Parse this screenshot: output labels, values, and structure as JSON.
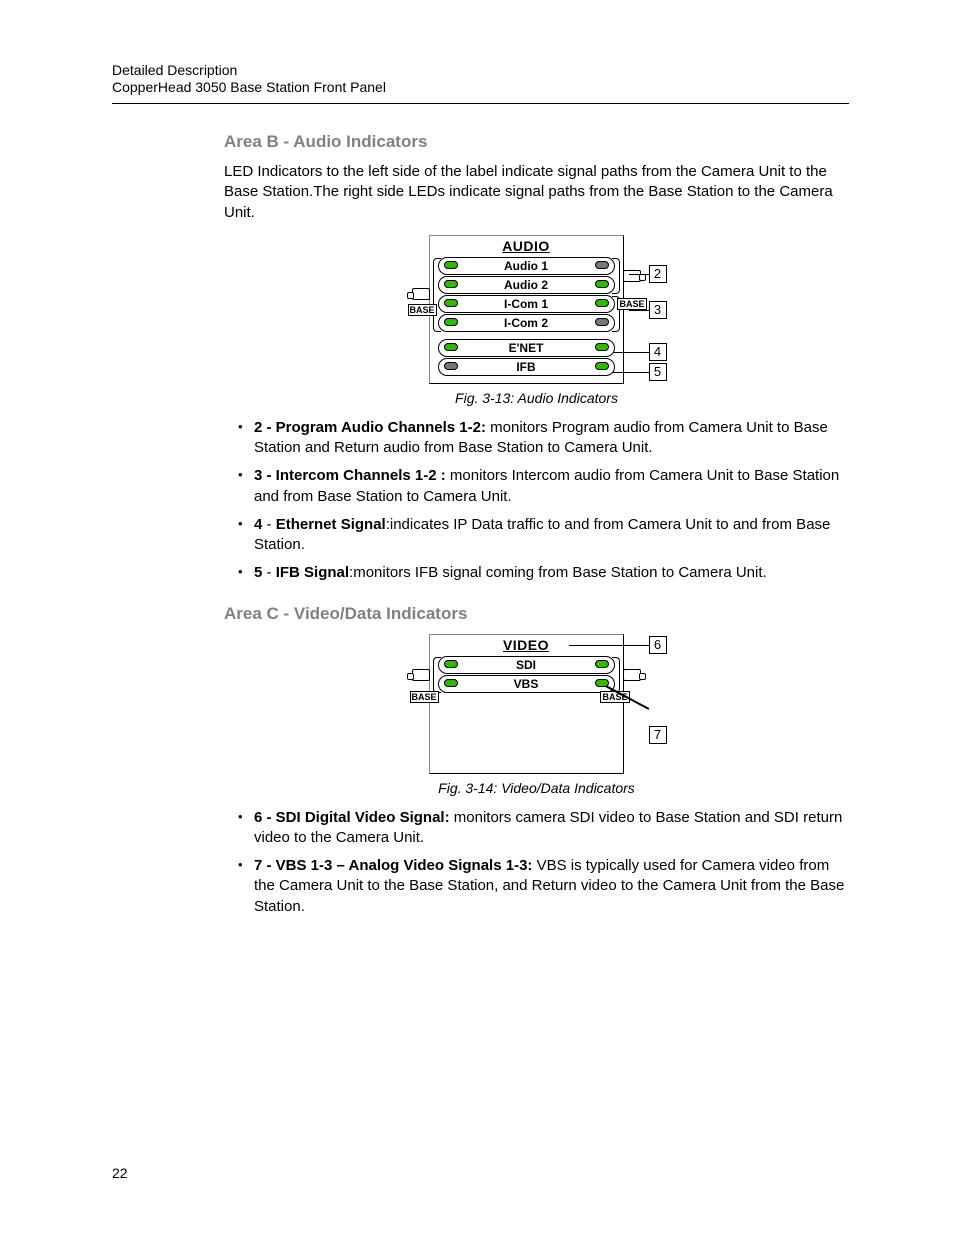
{
  "header": {
    "line1": "Detailed Description",
    "line2": "CopperHead 3050 Base Station Front Panel"
  },
  "page_number": "22",
  "colors": {
    "heading_gray": "#808080",
    "led_on": "#2dbb00",
    "led_off": "#777777",
    "text": "#000000",
    "background": "#ffffff"
  },
  "sectionB": {
    "heading": "Area B - Audio Indicators",
    "para": "LED Indicators to the left side of the label indicate signal paths from the Camera Unit to the Base Station.The  right side LEDs indicate signal paths from the Base Station to the Camera Unit.",
    "figure": {
      "title": "AUDIO",
      "rows": [
        {
          "label": "Audio 1",
          "left_on": true,
          "right_on": false
        },
        {
          "label": "Audio 2",
          "left_on": true,
          "right_on": true
        },
        {
          "label": "I-Com 1",
          "left_on": true,
          "right_on": true
        },
        {
          "label": "I-Com 2",
          "left_on": true,
          "right_on": false
        },
        {
          "label": "E'NET",
          "left_on": true,
          "right_on": true
        },
        {
          "label": "IFB",
          "left_on": false,
          "right_on": true
        }
      ],
      "left_base": "BASE",
      "right_base": "BASE",
      "callouts": [
        "2",
        "3",
        "4",
        "5"
      ],
      "caption": "Fig. 3-13: Audio Indicators"
    },
    "bullets": [
      {
        "lead": "2 - Program Audio Channels 1-2: ",
        "rest": "monitors Program audio from Camera Unit to Base Station and Return audio from Base Station to Camera Unit."
      },
      {
        "lead": "3 - Intercom Channels  1-2 : ",
        "rest": "monitors Intercom audio from Camera Unit to Base Station and from Base Station to Camera Unit."
      },
      {
        "lead_a": "4",
        "lead_b": " - ",
        "lead_c": "Ethernet Signal",
        "rest": ":indicates IP Data traffic to and from Camera Unit to and from Base Station."
      },
      {
        "lead_a": "5",
        "lead_b": " - ",
        "lead_c": "IFB Signal",
        "rest": ":monitors IFB signal coming from Base Station to Camera Unit."
      }
    ]
  },
  "sectionC": {
    "heading": "Area C - Video/Data Indicators",
    "figure": {
      "title": "VIDEO",
      "rows": [
        {
          "label": "SDI",
          "left_on": true,
          "right_on": true
        },
        {
          "label": "VBS",
          "left_on": true,
          "right_on": true
        }
      ],
      "left_base": "BASE",
      "right_base": "BASE",
      "callouts": [
        "6",
        "7"
      ],
      "caption": "Fig. 3-14: Video/Data Indicators"
    },
    "bullets": [
      {
        "lead": "6 - SDI Digital Video Signal: ",
        "rest": "monitors camera SDI video to Base Station and SDI return video to the Camera Unit."
      },
      {
        "lead": "7 - VBS 1-3 – Analog Video Signals 1-3: ",
        "rest": "VBS is typically used for Camera video from the Camera Unit to the Base Station, and Return video to the Camera Unit from the Base Station."
      }
    ]
  }
}
